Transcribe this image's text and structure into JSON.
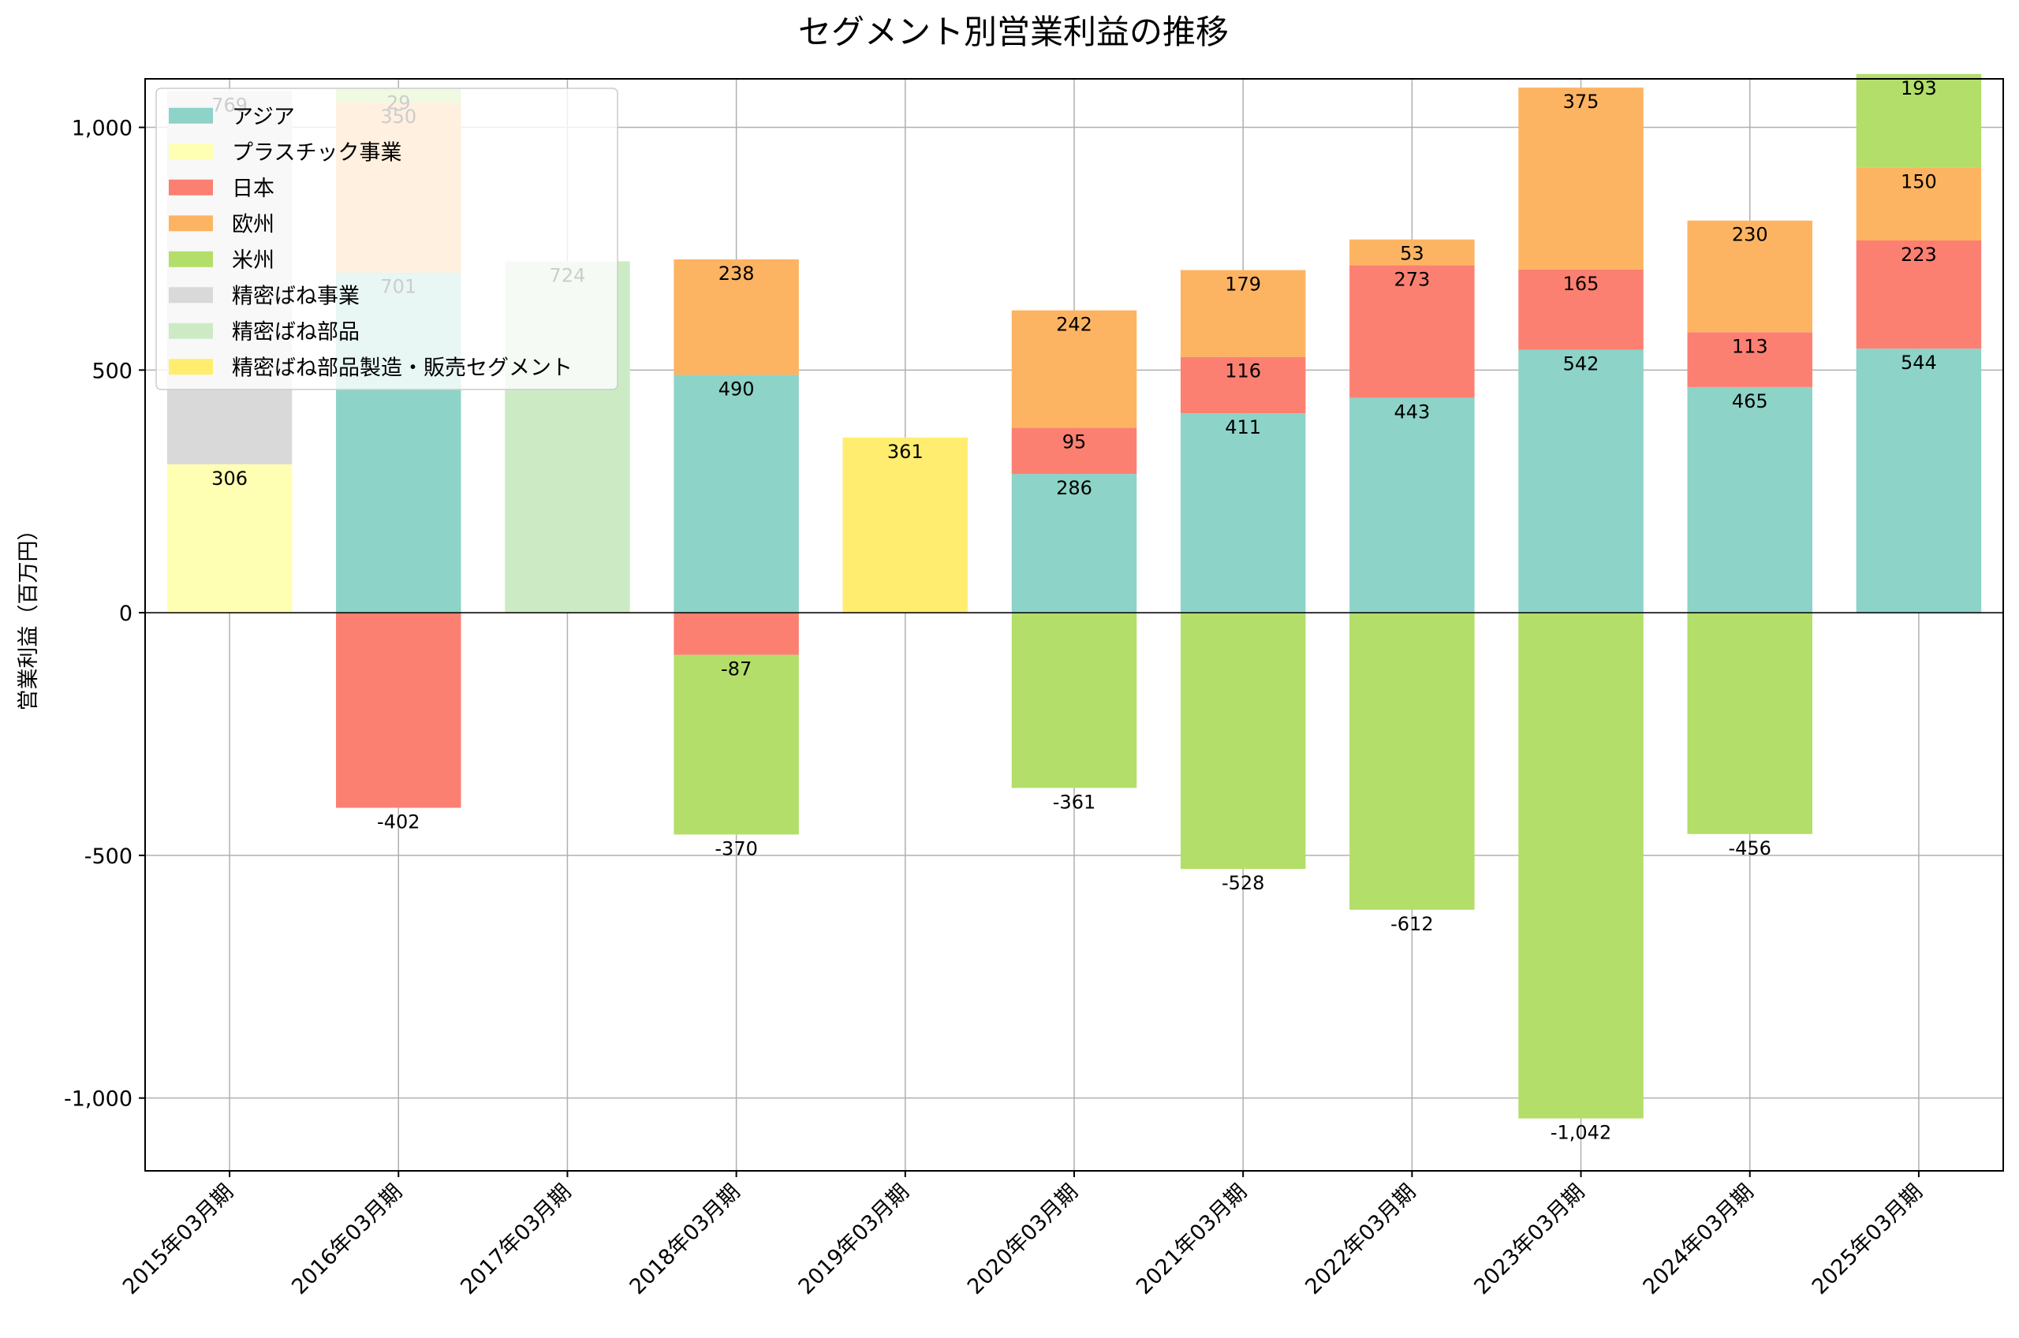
{
  "chart_data": {
    "type": "bar",
    "stacked": true,
    "title": "セグメント別営業利益の推移",
    "xlabel": "",
    "ylabel": "営業利益（百万円）",
    "ylim": [
      -1150,
      1100
    ],
    "yticks": [
      -1000,
      -500,
      0,
      500,
      1000
    ],
    "ytick_labels": [
      "-1,000",
      "-500",
      "0",
      "500",
      "1,000"
    ],
    "grid": true,
    "legend_position": "top-left",
    "categories": [
      "2015年03月期",
      "2016年03月期",
      "2017年03月期",
      "2018年03月期",
      "2019年03月期",
      "2020年03月期",
      "2021年03月期",
      "2022年03月期",
      "2023年03月期",
      "2024年03月期",
      "2025年03月期"
    ],
    "series": [
      {
        "name": "アジア",
        "color": "#8dd3c7",
        "values": [
          null,
          701,
          null,
          490,
          null,
          286,
          411,
          443,
          542,
          465,
          544
        ]
      },
      {
        "name": "プラスチック事業",
        "color": "#ffffb3",
        "values": [
          306,
          null,
          null,
          null,
          null,
          null,
          null,
          null,
          null,
          null,
          null
        ]
      },
      {
        "name": "日本",
        "color": "#fb8072",
        "values": [
          null,
          -402,
          null,
          -87,
          null,
          95,
          116,
          273,
          165,
          113,
          223
        ]
      },
      {
        "name": "欧州",
        "color": "#fdb462",
        "values": [
          null,
          350,
          null,
          238,
          null,
          242,
          179,
          53,
          375,
          230,
          150
        ]
      },
      {
        "name": "米州",
        "color": "#b3de69",
        "values": [
          null,
          29,
          null,
          -370,
          null,
          -361,
          -528,
          -612,
          -1042,
          -456,
          193
        ]
      },
      {
        "name": "精密ばね事業",
        "color": "#d9d9d9",
        "values": [
          769,
          null,
          null,
          null,
          null,
          null,
          null,
          null,
          null,
          null,
          null
        ]
      },
      {
        "name": "精密ばね部品",
        "color": "#ccebc5",
        "values": [
          null,
          null,
          724,
          null,
          null,
          null,
          null,
          null,
          null,
          null,
          null
        ]
      },
      {
        "name": "精密ばね部品製造・販売セグメント",
        "color": "#ffed6f",
        "values": [
          null,
          null,
          null,
          null,
          361,
          null,
          null,
          null,
          null,
          null,
          null
        ]
      }
    ]
  }
}
